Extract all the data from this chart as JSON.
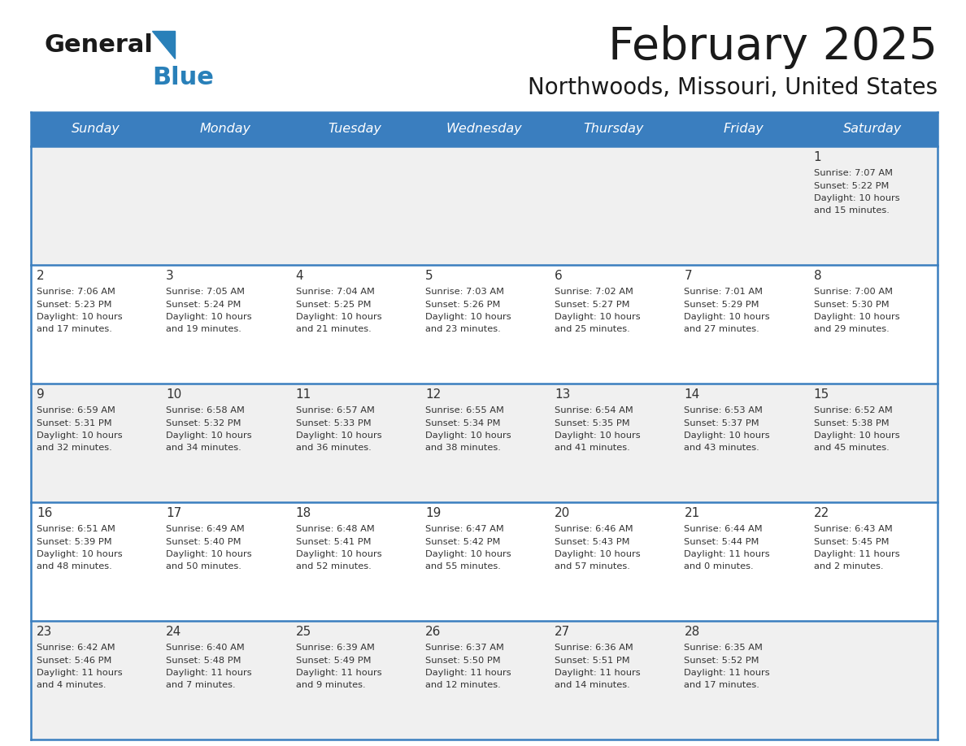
{
  "title": "February 2025",
  "subtitle": "Northwoods, Missouri, United States",
  "header_bg": "#3a7ebf",
  "header_text_color": "#ffffff",
  "cell_bg_row0": "#f0f0f0",
  "cell_bg_row1": "#ffffff",
  "cell_bg_row2": "#f0f0f0",
  "cell_bg_row3": "#ffffff",
  "cell_bg_row4": "#f0f0f0",
  "cell_border_color": "#3a7ebf",
  "text_color": "#333333",
  "days_of_week": [
    "Sunday",
    "Monday",
    "Tuesday",
    "Wednesday",
    "Thursday",
    "Friday",
    "Saturday"
  ],
  "calendar": [
    [
      null,
      null,
      null,
      null,
      null,
      null,
      1
    ],
    [
      2,
      3,
      4,
      5,
      6,
      7,
      8
    ],
    [
      9,
      10,
      11,
      12,
      13,
      14,
      15
    ],
    [
      16,
      17,
      18,
      19,
      20,
      21,
      22
    ],
    [
      23,
      24,
      25,
      26,
      27,
      28,
      null
    ]
  ],
  "day_data": {
    "1": {
      "sunrise": "7:07 AM",
      "sunset": "5:22 PM",
      "daylight_h": "10 hours",
      "daylight_m": "and 15 minutes."
    },
    "2": {
      "sunrise": "7:06 AM",
      "sunset": "5:23 PM",
      "daylight_h": "10 hours",
      "daylight_m": "and 17 minutes."
    },
    "3": {
      "sunrise": "7:05 AM",
      "sunset": "5:24 PM",
      "daylight_h": "10 hours",
      "daylight_m": "and 19 minutes."
    },
    "4": {
      "sunrise": "7:04 AM",
      "sunset": "5:25 PM",
      "daylight_h": "10 hours",
      "daylight_m": "and 21 minutes."
    },
    "5": {
      "sunrise": "7:03 AM",
      "sunset": "5:26 PM",
      "daylight_h": "10 hours",
      "daylight_m": "and 23 minutes."
    },
    "6": {
      "sunrise": "7:02 AM",
      "sunset": "5:27 PM",
      "daylight_h": "10 hours",
      "daylight_m": "and 25 minutes."
    },
    "7": {
      "sunrise": "7:01 AM",
      "sunset": "5:29 PM",
      "daylight_h": "10 hours",
      "daylight_m": "and 27 minutes."
    },
    "8": {
      "sunrise": "7:00 AM",
      "sunset": "5:30 PM",
      "daylight_h": "10 hours",
      "daylight_m": "and 29 minutes."
    },
    "9": {
      "sunrise": "6:59 AM",
      "sunset": "5:31 PM",
      "daylight_h": "10 hours",
      "daylight_m": "and 32 minutes."
    },
    "10": {
      "sunrise": "6:58 AM",
      "sunset": "5:32 PM",
      "daylight_h": "10 hours",
      "daylight_m": "and 34 minutes."
    },
    "11": {
      "sunrise": "6:57 AM",
      "sunset": "5:33 PM",
      "daylight_h": "10 hours",
      "daylight_m": "and 36 minutes."
    },
    "12": {
      "sunrise": "6:55 AM",
      "sunset": "5:34 PM",
      "daylight_h": "10 hours",
      "daylight_m": "and 38 minutes."
    },
    "13": {
      "sunrise": "6:54 AM",
      "sunset": "5:35 PM",
      "daylight_h": "10 hours",
      "daylight_m": "and 41 minutes."
    },
    "14": {
      "sunrise": "6:53 AM",
      "sunset": "5:37 PM",
      "daylight_h": "10 hours",
      "daylight_m": "and 43 minutes."
    },
    "15": {
      "sunrise": "6:52 AM",
      "sunset": "5:38 PM",
      "daylight_h": "10 hours",
      "daylight_m": "and 45 minutes."
    },
    "16": {
      "sunrise": "6:51 AM",
      "sunset": "5:39 PM",
      "daylight_h": "10 hours",
      "daylight_m": "and 48 minutes."
    },
    "17": {
      "sunrise": "6:49 AM",
      "sunset": "5:40 PM",
      "daylight_h": "10 hours",
      "daylight_m": "and 50 minutes."
    },
    "18": {
      "sunrise": "6:48 AM",
      "sunset": "5:41 PM",
      "daylight_h": "10 hours",
      "daylight_m": "and 52 minutes."
    },
    "19": {
      "sunrise": "6:47 AM",
      "sunset": "5:42 PM",
      "daylight_h": "10 hours",
      "daylight_m": "and 55 minutes."
    },
    "20": {
      "sunrise": "6:46 AM",
      "sunset": "5:43 PM",
      "daylight_h": "10 hours",
      "daylight_m": "and 57 minutes."
    },
    "21": {
      "sunrise": "6:44 AM",
      "sunset": "5:44 PM",
      "daylight_h": "11 hours",
      "daylight_m": "and 0 minutes."
    },
    "22": {
      "sunrise": "6:43 AM",
      "sunset": "5:45 PM",
      "daylight_h": "11 hours",
      "daylight_m": "and 2 minutes."
    },
    "23": {
      "sunrise": "6:42 AM",
      "sunset": "5:46 PM",
      "daylight_h": "11 hours",
      "daylight_m": "and 4 minutes."
    },
    "24": {
      "sunrise": "6:40 AM",
      "sunset": "5:48 PM",
      "daylight_h": "11 hours",
      "daylight_m": "and 7 minutes."
    },
    "25": {
      "sunrise": "6:39 AM",
      "sunset": "5:49 PM",
      "daylight_h": "11 hours",
      "daylight_m": "and 9 minutes."
    },
    "26": {
      "sunrise": "6:37 AM",
      "sunset": "5:50 PM",
      "daylight_h": "11 hours",
      "daylight_m": "and 12 minutes."
    },
    "27": {
      "sunrise": "6:36 AM",
      "sunset": "5:51 PM",
      "daylight_h": "11 hours",
      "daylight_m": "and 14 minutes."
    },
    "28": {
      "sunrise": "6:35 AM",
      "sunset": "5:52 PM",
      "daylight_h": "11 hours",
      "daylight_m": "and 17 minutes."
    }
  },
  "fig_width": 11.88,
  "fig_height": 9.18,
  "dpi": 100
}
